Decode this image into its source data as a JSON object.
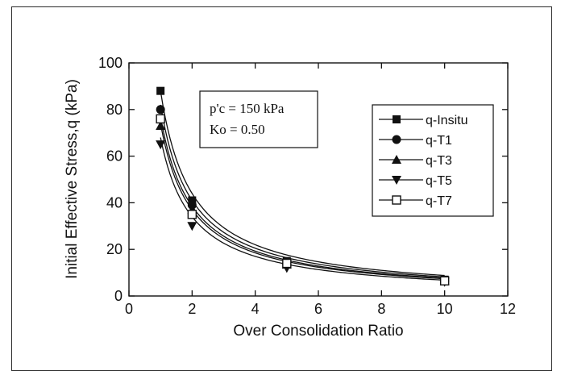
{
  "chart_data": {
    "type": "scatter",
    "title": "",
    "xlabel": "Over Consolidation Ratio",
    "ylabel": "Initial Effective Stress,q (kPa)",
    "xlim": [
      0,
      12
    ],
    "ylim": [
      0,
      100
    ],
    "xticks": [
      0,
      2,
      4,
      6,
      8,
      10,
      12
    ],
    "yticks": [
      0,
      20,
      40,
      60,
      80,
      100
    ],
    "grid": false,
    "legend_position": "top-right",
    "annotation": {
      "line1": "p'c = 150 kPa",
      "line2": "Ko = 0.50"
    },
    "x": [
      1,
      2,
      5,
      10
    ],
    "series": [
      {
        "name": "q-Insitu",
        "marker": "filled-square",
        "values": [
          88,
          41,
          15,
          7
        ],
        "fit_coefficient": 88
      },
      {
        "name": "q-T1",
        "marker": "filled-circle",
        "values": [
          80,
          39,
          14,
          6.5
        ],
        "fit_coefficient": 82
      },
      {
        "name": "q-T3",
        "marker": "filled-triangle-up",
        "values": [
          73,
          37,
          13.5,
          6.5
        ],
        "fit_coefficient": 77
      },
      {
        "name": "q-T5",
        "marker": "filled-triangle-down",
        "values": [
          65,
          30,
          12,
          6
        ],
        "fit_coefficient": 68
      },
      {
        "name": "q-T7",
        "marker": "open-square",
        "values": [
          76,
          35,
          14,
          6.5
        ],
        "fit_coefficient": 74
      }
    ]
  }
}
